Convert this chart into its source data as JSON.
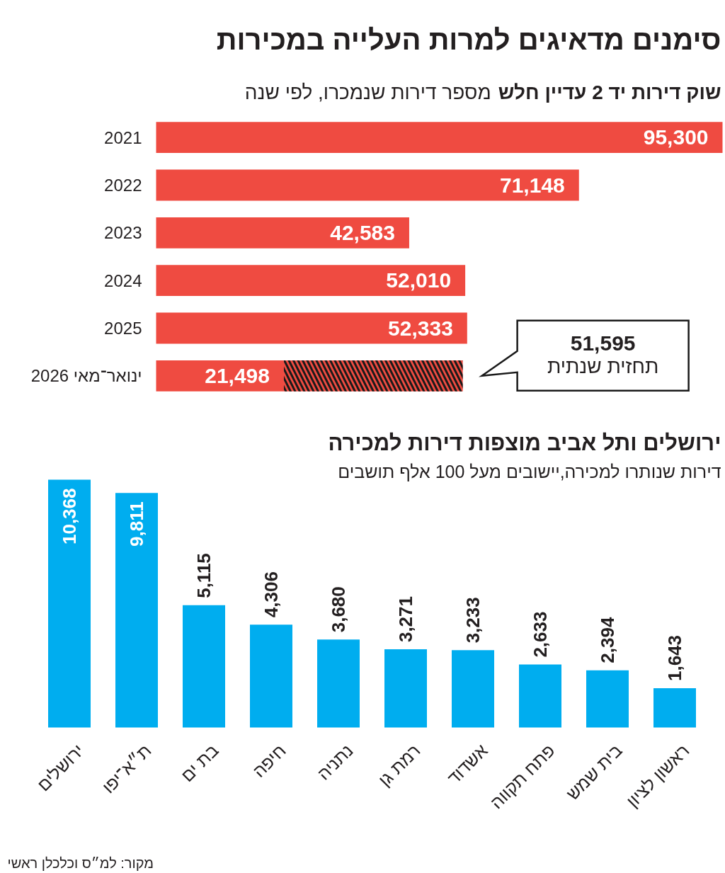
{
  "chart_data": [
    {
      "type": "bar",
      "orientation": "horizontal",
      "stacked": true,
      "title": "סימנים מדאיגים למרות העלייה במכירות",
      "subtitle": "שוק דירות יד 2 עדיין חלש",
      "xlabel": "מספר דירות שנמכרו, לפי שנה",
      "categories": [
        "2021",
        "2022",
        "2023",
        "2024",
        "2025",
        "ינואר־מאי 2026"
      ],
      "series": [
        {
          "color": "#ef4b41",
          "values": [
            95300,
            71148,
            42583,
            52010,
            52333,
            21498
          ],
          "value_labels": [
            "95,300",
            "71,148",
            "42,583",
            "52,010",
            "52,333",
            "21,498"
          ]
        },
        {
          "color": "#ef4b41",
          "values": [
            null,
            null,
            null,
            null,
            null,
            30097
          ],
          "value_labels": [
            null,
            null,
            null,
            null,
            null,
            null
          ]
        }
      ],
      "annotations": [
        "51,595\nתחזית שנתית"
      ]
    },
    {
      "type": "bar",
      "title": "ירושלים ותל אביב מוצפות דירות למכירה",
      "subtitle": "דירות שנותרו למכירה,יישובים מעל 100 אלף תושבים",
      "categories": [
        "ירושלים",
        "ת״א־יפו",
        "בת ים",
        "חיפה",
        "נתניה",
        "רמת גן",
        "אשדוד",
        "פתח תקווה",
        "בית שמש",
        "ראשון לציון"
      ],
      "values": [
        10368,
        9811,
        5115,
        4306,
        3680,
        3271,
        3233,
        2633,
        2394,
        1643
      ],
      "color": "#00adef",
      "value_labels": [
        "10,368",
        "9,811",
        "5,115",
        "4,306",
        "3,680",
        "3,271",
        "3,233",
        "2,633",
        "2,394",
        "1,643"
      ],
      "annotations": [
        "מקור: למ״ס וכלכלן ראשי"
      ]
    }
  ]
}
